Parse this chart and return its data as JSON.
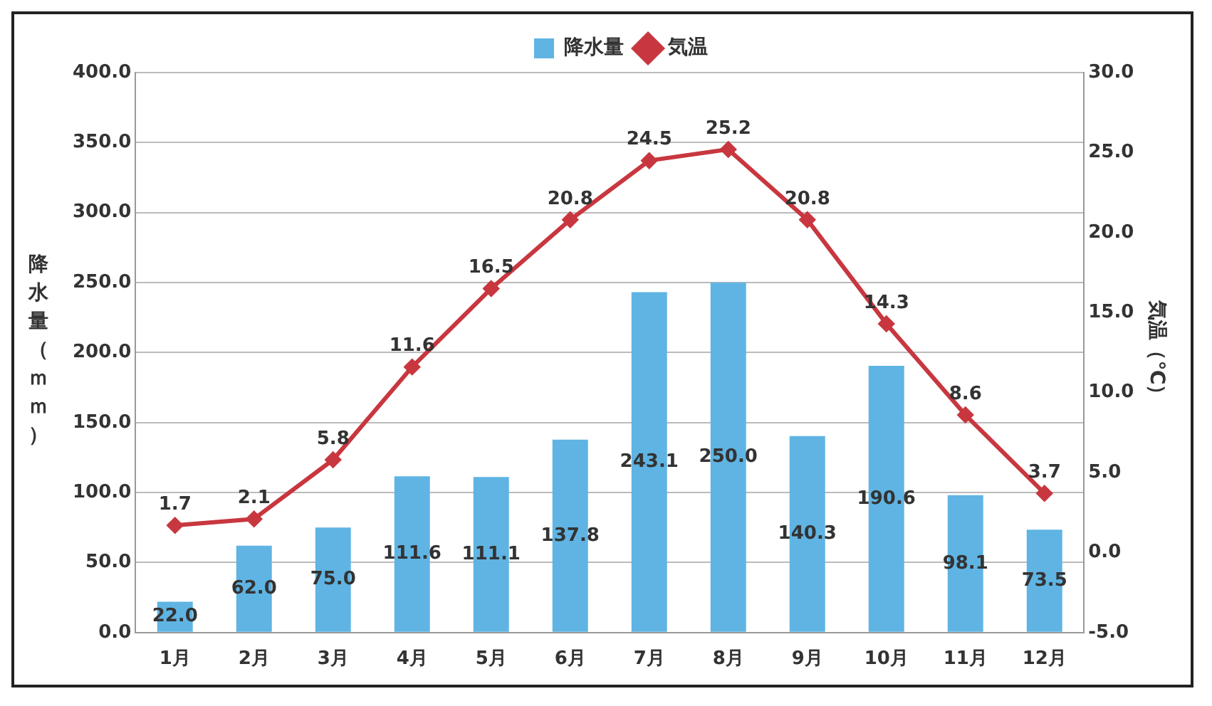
{
  "chart_data": {
    "type": "bar",
    "categories": [
      "1月",
      "2月",
      "3月",
      "4月",
      "5月",
      "6月",
      "7月",
      "8月",
      "9月",
      "10月",
      "11月",
      "12月"
    ],
    "series": [
      {
        "name": "降水量",
        "color": "#5fb4e3",
        "values": [
          22.0,
          62.0,
          75.0,
          111.6,
          111.1,
          137.8,
          243.1,
          250.0,
          140.3,
          190.6,
          98.1,
          73.5
        ],
        "value_labels": [
          "22.0",
          "62.0",
          "75.0",
          "111.6",
          "111.1",
          "137.8",
          "243.1",
          "250.0",
          "140.3",
          "190.6",
          "98.1",
          "73.5"
        ]
      },
      {
        "name": "気温",
        "type": "line",
        "axis": "y2",
        "color": "#c8373f",
        "marker": "diamond",
        "values": [
          1.7,
          2.1,
          5.8,
          11.6,
          16.5,
          20.8,
          24.5,
          25.2,
          20.8,
          14.3,
          8.6,
          3.7
        ],
        "value_labels": [
          "1.7",
          "2.1",
          "5.8",
          "11.6",
          "16.5",
          "20.8",
          "24.5",
          "25.2",
          "20.8",
          "14.3",
          "8.6",
          "3.7"
        ]
      }
    ],
    "ylabel": "降水量（ｍｍ）",
    "y2label": "気温（℃）",
    "ylim": [
      0,
      400
    ],
    "yticks": [
      {
        "value": 0,
        "label": "0.0"
      },
      {
        "value": 50,
        "label": "50.0"
      },
      {
        "value": 100,
        "label": "100.0"
      },
      {
        "value": 150,
        "label": "150.0"
      },
      {
        "value": 200,
        "label": "200.0"
      },
      {
        "value": 250,
        "label": "250.0"
      },
      {
        "value": 300,
        "label": "300.0"
      },
      {
        "value": 350,
        "label": "350.0"
      },
      {
        "value": 400,
        "label": "400.0"
      }
    ],
    "y2lim": [
      -5,
      30
    ],
    "y2ticks": [
      {
        "value": -5,
        "label": "-5.0"
      },
      {
        "value": 0,
        "label": "0.0"
      },
      {
        "value": 5,
        "label": "5.0"
      },
      {
        "value": 10,
        "label": "10.0"
      },
      {
        "value": 15,
        "label": "15.0"
      },
      {
        "value": 20,
        "label": "20.0"
      },
      {
        "value": 25,
        "label": "25.0"
      },
      {
        "value": 30,
        "label": "30.0"
      }
    ],
    "grid": "y",
    "legend": "top"
  }
}
